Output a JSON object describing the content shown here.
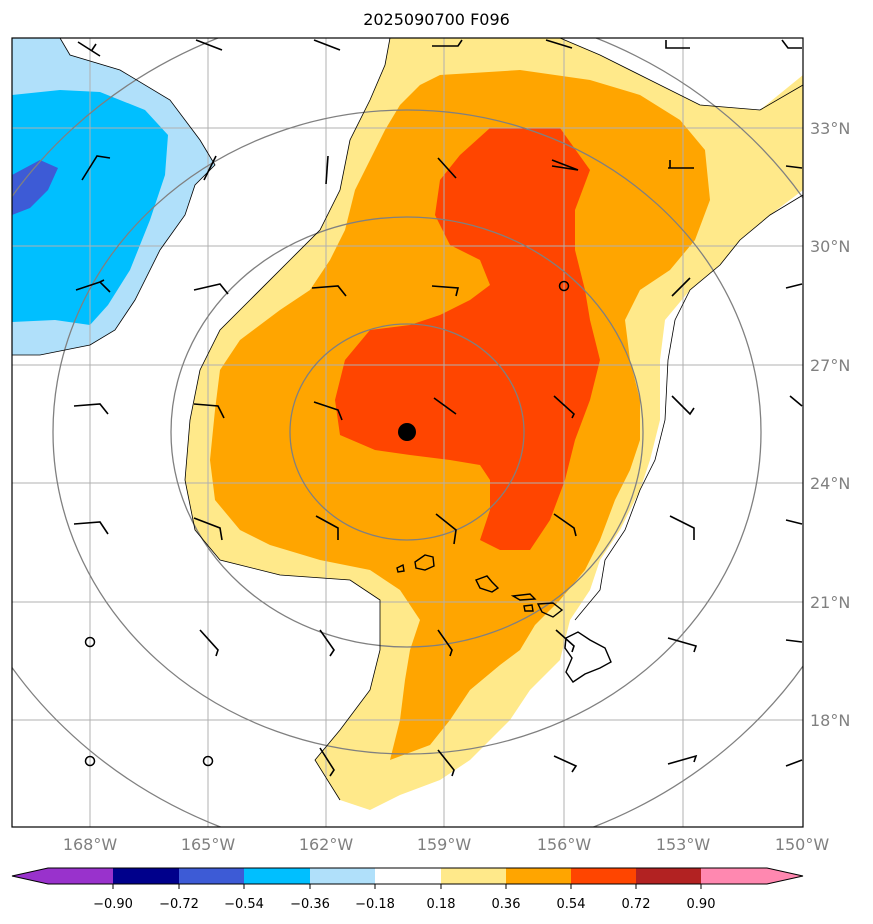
{
  "title": "2025090700 F096",
  "lat_labels": [
    "33°N",
    "30°N",
    "27°N",
    "24°N",
    "21°N",
    "18°N"
  ],
  "lon_labels": [
    "168°W",
    "165°W",
    "162°W",
    "159°W",
    "156°W",
    "153°W",
    "150°W"
  ],
  "colorbar": {
    "ticks": [
      "−0.90",
      "−0.72",
      "−0.54",
      "−0.36",
      "−0.18",
      "0.18",
      "0.36",
      "0.54",
      "0.72",
      "0.90"
    ],
    "colors": [
      "#9932cc",
      "#00008b",
      "#3d5bd6",
      "#00bfff",
      "#b0e0fa",
      "#ffffff",
      "#ffe98a",
      "#ffa500",
      "#ff4500",
      "#b22222",
      "#ff88b0"
    ]
  },
  "colors": {
    "level1": "#ffe98a",
    "level2": "#ffa500",
    "level3": "#ff4500",
    "neg1": "#b0e0fa",
    "neg2": "#00bfff",
    "neg3": "#3d5bd6"
  },
  "center_marker": "storm-center-dot"
}
